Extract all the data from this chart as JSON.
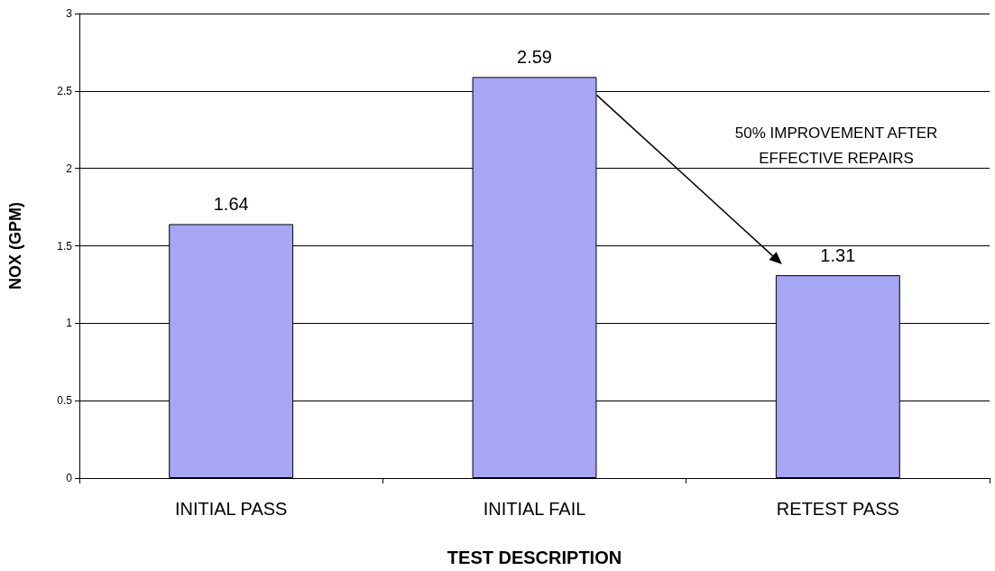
{
  "chart_data": {
    "type": "bar",
    "xlabel": "TEST DESCRIPTION",
    "ylabel": "NOX (GPM)",
    "categories": [
      "INITIAL PASS",
      "INITIAL FAIL",
      "RETEST PASS"
    ],
    "values": [
      1.64,
      2.59,
      1.31
    ],
    "color": "#a6a6f4",
    "ylim": [
      0,
      3
    ],
    "yticks": [
      0,
      0.5,
      1,
      1.5,
      2,
      2.5,
      3
    ],
    "grid": "y",
    "data_labels": true,
    "annotations": [
      "50% IMPROVEMENT AFTER\nEFFECTIVE REPAIRS"
    ]
  }
}
